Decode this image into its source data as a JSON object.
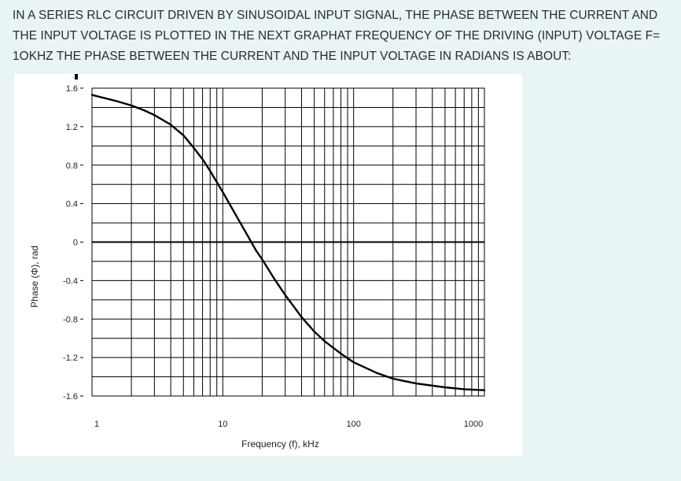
{
  "question": {
    "lines": [
      "IN A SERIES RLC CIRCUIT DRIVEN BY SINUSOIDAL INPUT SIGNAL, THE PHASE BETWEEN THE CURRENT AND",
      "THE INPUT VOLTAGE IS PLOTTED IN THE NEXT GRAPHAT FREQUENCY OF THE DRIVING (INPUT) VOLTAGE F=",
      "1OKHZ THE PHASE BETWEEN THE CURRENT AND THE INPUT VOLTAGE IN RADIANS IS ABOUT:"
    ]
  },
  "chart_data": {
    "type": "line",
    "title": "",
    "xlabel": "Frequency (f), kHz",
    "ylabel": "Phase (Φ), rad",
    "x_scale": "log",
    "xlim": [
      1,
      1000
    ],
    "ylim": [
      -1.6,
      1.6
    ],
    "x_tick_labels": [
      "1",
      "10",
      "100",
      "1000"
    ],
    "y_tick_labels": [
      "1.6",
      "1.2",
      "0.8",
      "0.4",
      "0",
      "-0.4",
      "-0.8",
      "-1.2",
      "-1.6"
    ],
    "y_ticks": [
      1.6,
      1.2,
      0.8,
      0.4,
      0,
      -0.4,
      -0.8,
      -1.2,
      -1.6
    ],
    "grid": true,
    "series": [
      {
        "color": "#000000",
        "x": [
          1,
          1.5,
          2,
          2.5,
          3,
          4,
          5,
          6,
          7,
          8,
          10,
          12,
          15,
          18,
          20,
          25,
          30,
          40,
          50,
          60,
          80,
          100,
          150,
          200,
          300,
          500,
          700,
          1000
        ],
        "y": [
          1.53,
          1.47,
          1.42,
          1.37,
          1.32,
          1.22,
          1.11,
          0.98,
          0.86,
          0.74,
          0.52,
          0.33,
          0.1,
          -0.09,
          -0.18,
          -0.39,
          -0.55,
          -0.78,
          -0.93,
          -1.03,
          -1.16,
          -1.25,
          -1.36,
          -1.42,
          -1.47,
          -1.51,
          -1.53,
          -1.54
        ]
      }
    ]
  }
}
